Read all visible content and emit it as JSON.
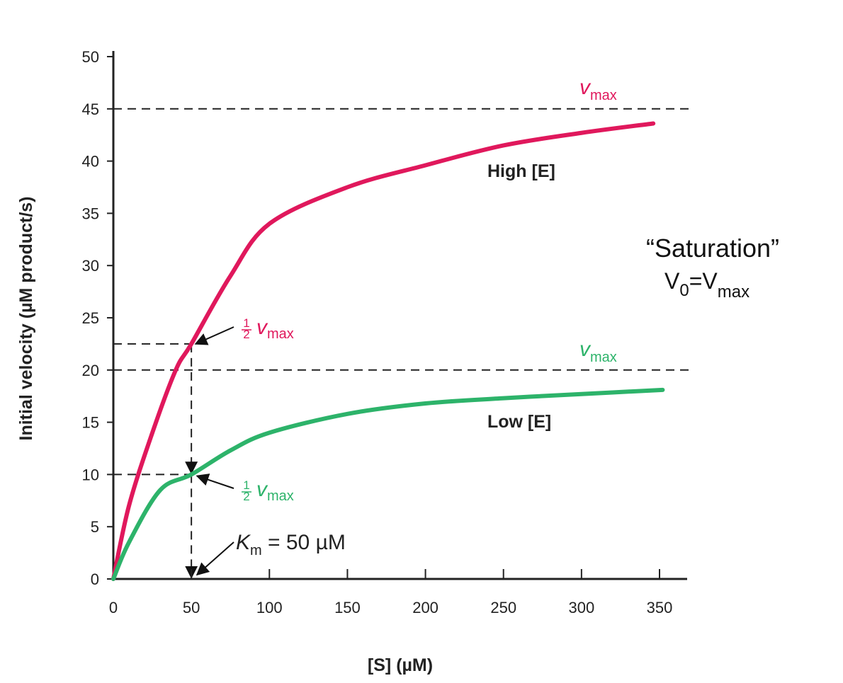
{
  "chart_data": {
    "type": "line",
    "xlabel": "[S] (µM)",
    "ylabel": "Initial velocity (µM product/s)",
    "xlim": [
      0,
      350
    ],
    "ylim": [
      0,
      50
    ],
    "xticks": [
      0,
      50,
      100,
      150,
      200,
      250,
      300,
      350
    ],
    "yticks": [
      0,
      5,
      10,
      15,
      20,
      25,
      30,
      35,
      40,
      45,
      50
    ],
    "grid": false,
    "colors": {
      "high": "#e0185c",
      "low": "#2db36a",
      "axis": "#222222"
    },
    "series": [
      {
        "name": "High [E]",
        "color": "#e0185c",
        "x": [
          0,
          10,
          25,
          40,
          50,
          75,
          100,
          150,
          200,
          250,
          300,
          346
        ],
        "y": [
          0,
          7,
          14,
          20,
          22.5,
          29,
          34,
          37.5,
          39.6,
          41.5,
          42.7,
          43.6
        ]
      },
      {
        "name": "Low [E]",
        "color": "#2db36a",
        "x": [
          0,
          10,
          30,
          50,
          75,
          100,
          150,
          200,
          250,
          300,
          352
        ],
        "y": [
          0,
          3.5,
          8.5,
          10,
          12.3,
          14,
          15.8,
          16.8,
          17.3,
          17.7,
          18.1
        ]
      }
    ],
    "reference_lines": {
      "high_vmax": 45,
      "low_vmax": 20,
      "high_half_vmax": 22.5,
      "low_half_vmax": 10,
      "km": 50
    },
    "annotations": {
      "vmax_symbol": "v",
      "vmax_sub": "max",
      "half_num": "1",
      "half_den": "2",
      "km_symbol": "K",
      "km_sub": "m",
      "km_text": " = 50 µM",
      "saturation": "“Saturation”",
      "v0_main": "V",
      "v0_sub": "0",
      "v0_eq": "=V",
      "v0_max": "max"
    }
  }
}
